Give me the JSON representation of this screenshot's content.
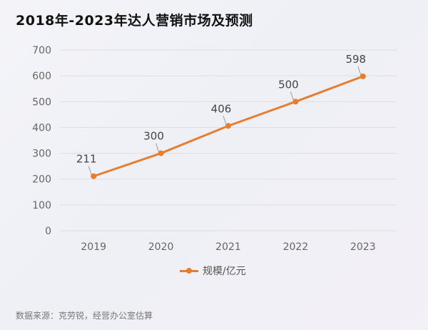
{
  "title": "2018年-2023年达人营销市场及预测",
  "source": "数据来源：克劳锐，经营办公室估算",
  "colors": {
    "series": "#e67e32",
    "axis_text": "#666666",
    "label_text": "#444444",
    "grid": "#dedede"
  },
  "chart_data": {
    "type": "line",
    "title": "2018年-2023年达人营销市场及预测",
    "xlabel": "",
    "ylabel": "",
    "categories": [
      "2019",
      "2020",
      "2021",
      "2022",
      "2023"
    ],
    "y_ticks": [
      "0",
      "100",
      "200",
      "300",
      "400",
      "500",
      "600",
      "700"
    ],
    "ylim": [
      0,
      700
    ],
    "grid": true,
    "legend": "bottom",
    "series": [
      {
        "name": "规模/亿元",
        "values": [
          211,
          300,
          406,
          500,
          598
        ]
      }
    ]
  }
}
